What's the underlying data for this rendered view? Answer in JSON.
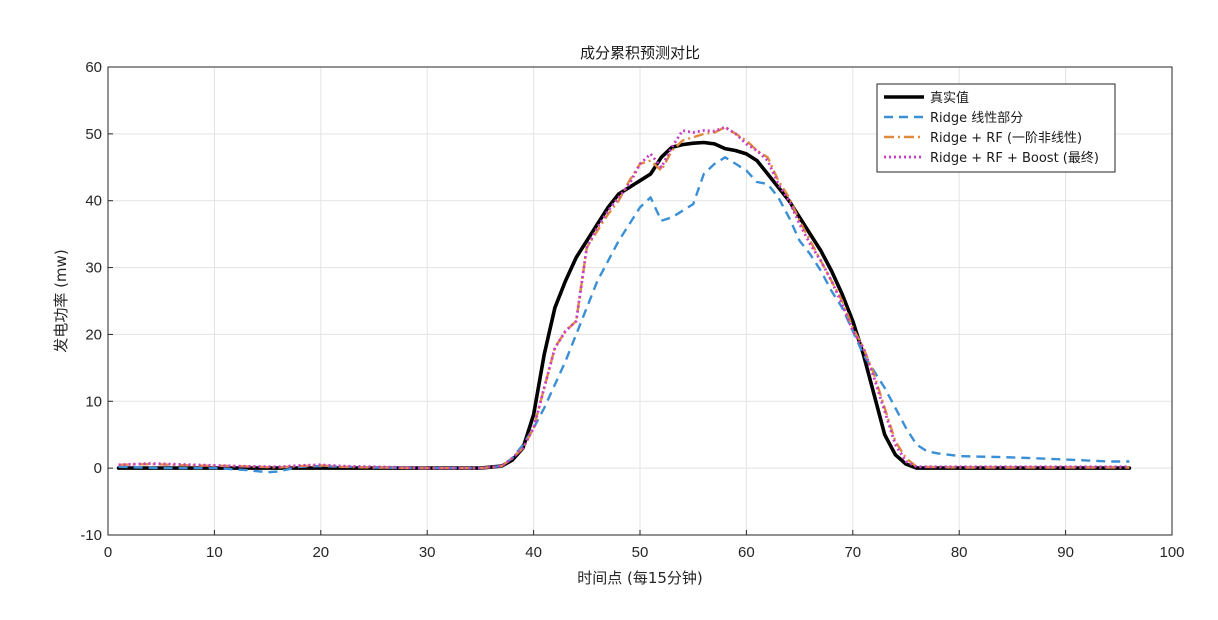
{
  "chart_data": {
    "type": "line",
    "title": "成分累积预测对比",
    "xlabel": "时间点 (每15分钟)",
    "ylabel": "发电功率 (mw)",
    "xlim": [
      0,
      100
    ],
    "ylim": [
      -10,
      60
    ],
    "xticks": [
      0,
      10,
      20,
      30,
      40,
      50,
      60,
      70,
      80,
      90,
      100
    ],
    "yticks": [
      -10,
      0,
      10,
      20,
      30,
      40,
      50,
      60
    ],
    "grid": true,
    "legend_position": "top-right",
    "series": [
      {
        "name": "真实值",
        "color": "#000000",
        "style": "solid",
        "x": [
          1,
          5,
          10,
          15,
          20,
          25,
          30,
          35,
          37,
          38,
          39,
          40,
          41,
          42,
          43,
          44,
          45,
          46,
          47,
          48,
          49,
          50,
          51,
          52,
          53,
          54,
          55,
          56,
          57,
          58,
          59,
          60,
          61,
          62,
          63,
          64,
          65,
          66,
          67,
          68,
          69,
          70,
          71,
          72,
          73,
          74,
          75,
          76,
          80,
          85,
          90,
          96
        ],
        "y": [
          0,
          0,
          0,
          0,
          0,
          0,
          0,
          0,
          0.3,
          1.2,
          3,
          8,
          17,
          24,
          28,
          31.5,
          34,
          36.5,
          39,
          41,
          42,
          43,
          44,
          46.5,
          48,
          48.4,
          48.6,
          48.7,
          48.5,
          47.8,
          47.5,
          47,
          46,
          44,
          42,
          40,
          37.5,
          35,
          32.5,
          29.5,
          26,
          22,
          17,
          11,
          5,
          2,
          0.6,
          0,
          0,
          0,
          0,
          0
        ]
      },
      {
        "name": "Ridge 线性部分",
        "color": "#3a8fd6",
        "style": "dashed",
        "x": [
          1,
          5,
          10,
          13,
          15,
          16,
          18,
          20,
          25,
          30,
          35,
          37,
          38,
          39,
          40,
          41,
          42,
          43,
          44,
          45,
          46,
          47,
          48,
          49,
          50,
          51,
          52,
          53,
          54,
          55,
          56,
          57,
          58,
          59,
          60,
          61,
          62,
          63,
          64,
          65,
          66,
          67,
          68,
          69,
          70,
          71,
          72,
          73,
          74,
          75,
          76,
          77,
          78,
          80,
          85,
          90,
          94,
          96
        ],
        "y": [
          0.2,
          0,
          0,
          -0.3,
          -0.6,
          -0.5,
          0.2,
          0.3,
          0.1,
          0,
          0,
          0.3,
          1.5,
          3.5,
          6,
          9,
          12.5,
          16,
          20,
          24,
          28,
          31,
          34,
          36.5,
          39,
          40.5,
          37,
          37.5,
          38.5,
          39.5,
          44,
          45.5,
          46.5,
          45.5,
          44.5,
          42.8,
          42.5,
          40.5,
          37.5,
          34,
          32,
          29.5,
          26.5,
          24,
          20.5,
          17,
          14.5,
          12,
          9,
          6,
          3.5,
          2.5,
          2.2,
          1.8,
          1.6,
          1.3,
          1,
          1
        ]
      },
      {
        "name": "Ridge + RF (一阶非线性)",
        "color": "#e08a3c",
        "style": "dashdot",
        "x": [
          1,
          4,
          8,
          12,
          16,
          18,
          20,
          22,
          25,
          30,
          35,
          37,
          38,
          39,
          40,
          41,
          42,
          43,
          44,
          45,
          46,
          47,
          48,
          49,
          50,
          51,
          52,
          53,
          54,
          55,
          56,
          57,
          58,
          59,
          60,
          61,
          62,
          63,
          64,
          65,
          66,
          67,
          68,
          69,
          70,
          71,
          72,
          73,
          74,
          75,
          76,
          80,
          85,
          90,
          96
        ],
        "y": [
          0.5,
          0.6,
          0.4,
          0.3,
          0.1,
          0.3,
          0.4,
          0.2,
          0.1,
          0,
          0,
          0.3,
          1.5,
          3,
          6,
          12,
          18,
          20.5,
          22,
          33,
          35.5,
          38,
          40,
          43,
          45.5,
          46,
          44.5,
          47.5,
          49,
          49.5,
          50,
          50.2,
          51,
          50,
          49,
          47.5,
          46.5,
          43,
          40.5,
          37,
          34,
          31,
          28,
          25,
          21,
          18,
          14,
          9,
          4,
          1.5,
          0.2,
          0.1,
          0.1,
          0.1,
          0.1
        ]
      },
      {
        "name": "Ridge + RF + Boost (最终)",
        "color": "#c93cc4",
        "style": "dotted",
        "x": [
          1,
          4,
          8,
          12,
          16,
          18,
          20,
          22,
          25,
          30,
          35,
          37,
          38,
          39,
          40,
          41,
          42,
          43,
          44,
          45,
          46,
          47,
          48,
          49,
          50,
          51,
          52,
          53,
          54,
          55,
          56,
          57,
          58,
          59,
          60,
          61,
          62,
          63,
          64,
          65,
          66,
          67,
          68,
          69,
          70,
          71,
          72,
          73,
          74,
          75,
          76,
          80,
          85,
          90,
          96
        ],
        "y": [
          0.5,
          0.7,
          0.5,
          0.3,
          0.2,
          0.4,
          0.5,
          0.3,
          0.2,
          0,
          0,
          0.3,
          1.5,
          3,
          6,
          12,
          18,
          20.5,
          22,
          33,
          36,
          38.5,
          40.5,
          42.5,
          45.5,
          47,
          45,
          48,
          50.5,
          50.2,
          50.5,
          50.4,
          51,
          50,
          48.5,
          47.5,
          46,
          42.5,
          40,
          36.5,
          33.5,
          31,
          28,
          24.5,
          20.5,
          18,
          13.5,
          8.5,
          3.5,
          1,
          0.2,
          0.2,
          0.2,
          0.2,
          0.2
        ]
      }
    ]
  }
}
